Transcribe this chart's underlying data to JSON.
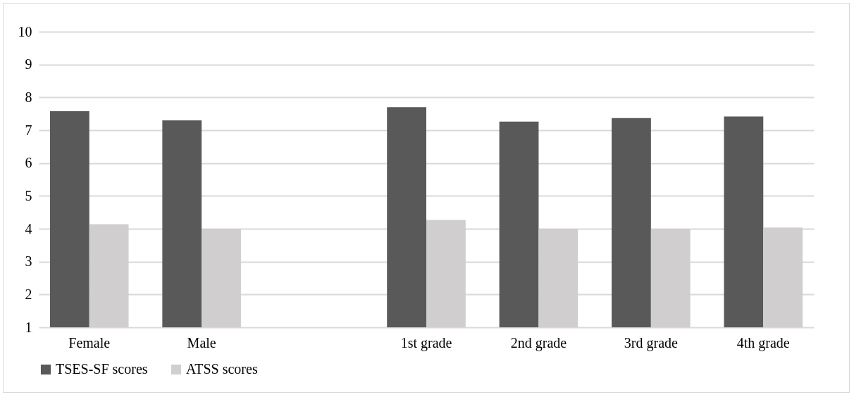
{
  "chart_data": {
    "type": "bar",
    "categories": [
      "Female",
      "Male",
      null,
      "1st grade",
      "2nd grade",
      "3rd grade",
      "4th grade"
    ],
    "series": [
      {
        "name": "TSES-SF scores",
        "color": "#595959",
        "values": [
          7.58,
          7.3,
          null,
          7.7,
          7.26,
          7.37,
          7.42
        ]
      },
      {
        "name": "ATSS scores",
        "color": "#d0cece",
        "values": [
          4.14,
          4.0,
          null,
          4.27,
          4.0,
          4.0,
          4.04
        ]
      }
    ],
    "ylim": [
      1,
      10
    ],
    "yticks": [
      1,
      2,
      3,
      4,
      5,
      6,
      7,
      8,
      9,
      10
    ],
    "grid": "y",
    "legend": "bottom"
  }
}
